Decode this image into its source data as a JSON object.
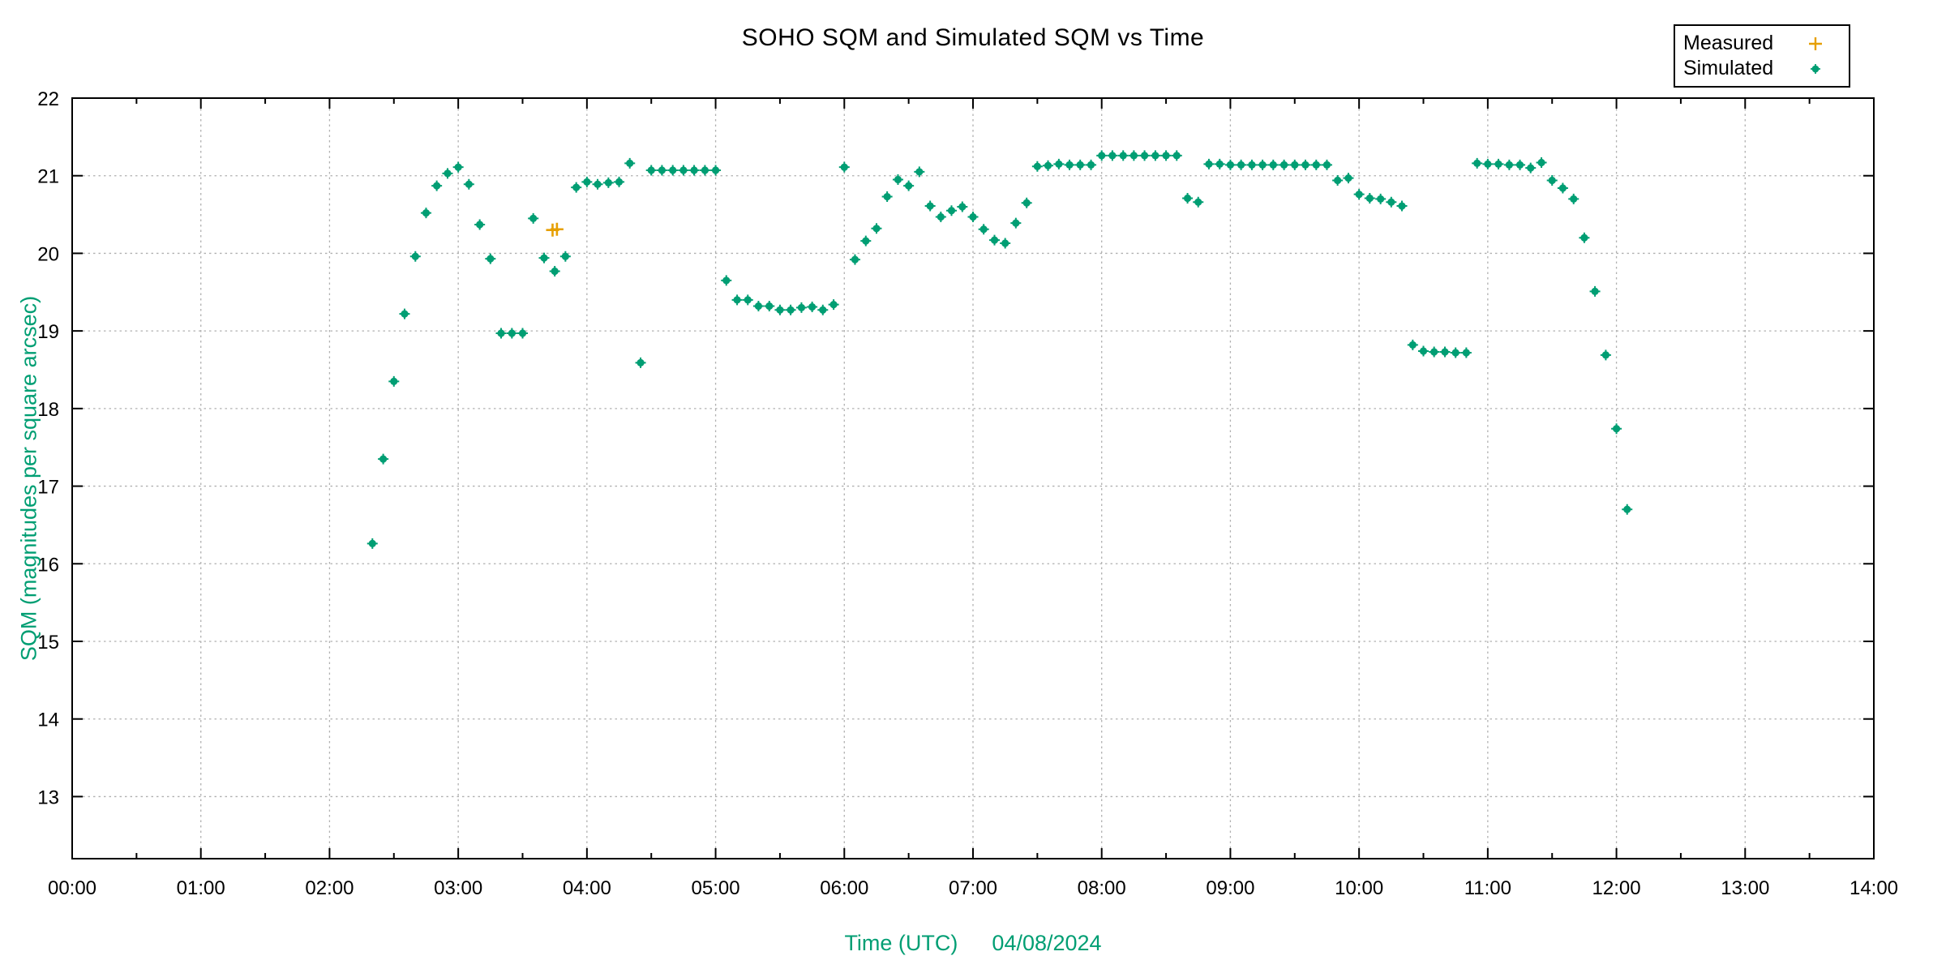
{
  "chart_data": {
    "type": "scatter",
    "title": "SOHO SQM and Simulated SQM vs Time",
    "xlabel": "Time (UTC)",
    "date_label": "04/08/2024",
    "ylabel": "SQM (magnitudes per square arcsec)",
    "xlim": [
      0,
      14
    ],
    "ylim": [
      12.2,
      22
    ],
    "x_tick_values": [
      0,
      1,
      2,
      3,
      4,
      5,
      6,
      7,
      8,
      9,
      10,
      11,
      12,
      13,
      14
    ],
    "x_tick_labels": [
      "00:00",
      "01:00",
      "02:00",
      "03:00",
      "04:00",
      "05:00",
      "06:00",
      "07:00",
      "08:00",
      "09:00",
      "10:00",
      "11:00",
      "12:00",
      "13:00",
      "14:00"
    ],
    "x_minor_tick_step": 0.5,
    "y_tick_values": [
      13,
      14,
      15,
      16,
      17,
      18,
      19,
      20,
      21,
      22
    ],
    "y_tick_labels": [
      "13",
      "14",
      "15",
      "16",
      "17",
      "18",
      "19",
      "20",
      "21",
      "22"
    ],
    "grid": true,
    "legend": {
      "position": "outside-top-right",
      "entries": [
        {
          "label": "Measured",
          "marker": "plus",
          "color": "#E69F00"
        },
        {
          "label": "Simulated",
          "marker": "dot",
          "color": "#009E73"
        }
      ]
    },
    "colors": {
      "measured": "#E69F00",
      "simulated": "#009E73",
      "axis_label_text": "#009E73",
      "grid": "#b0b0b0",
      "axis": "#000000",
      "text": "#000000",
      "background": "#ffffff"
    },
    "series": [
      {
        "name": "Measured",
        "marker": "plus",
        "color": "#E69F00",
        "x": [
          3.733,
          3.767
        ],
        "y": [
          20.3,
          20.31
        ]
      },
      {
        "name": "Simulated",
        "marker": "dot",
        "color": "#009E73",
        "x": [
          2.333,
          2.417,
          2.5,
          2.583,
          2.667,
          2.75,
          2.833,
          2.917,
          3.0,
          3.083,
          3.167,
          3.25,
          3.333,
          3.417,
          3.5,
          3.583,
          3.667,
          3.75,
          3.833,
          3.917,
          4.0,
          4.083,
          4.167,
          4.25,
          4.333,
          4.417,
          4.5,
          4.583,
          4.667,
          4.75,
          4.833,
          4.917,
          5.0,
          5.083,
          5.167,
          5.25,
          5.333,
          5.417,
          5.5,
          5.583,
          5.667,
          5.75,
          5.833,
          5.917,
          6.0,
          6.083,
          6.167,
          6.25,
          6.333,
          6.417,
          6.5,
          6.583,
          6.667,
          6.75,
          6.833,
          6.917,
          7.0,
          7.083,
          7.167,
          7.25,
          7.333,
          7.417,
          7.5,
          7.583,
          7.667,
          7.75,
          7.833,
          7.917,
          8.0,
          8.083,
          8.167,
          8.25,
          8.333,
          8.417,
          8.5,
          8.583,
          8.667,
          8.75,
          8.833,
          8.917,
          9.0,
          9.083,
          9.167,
          9.25,
          9.333,
          9.417,
          9.5,
          9.583,
          9.667,
          9.75,
          9.833,
          9.917,
          10.0,
          10.083,
          10.167,
          10.25,
          10.333,
          10.417,
          10.5,
          10.583,
          10.667,
          10.75,
          10.833,
          10.917,
          11.0,
          11.083,
          11.167,
          11.25,
          11.333,
          11.417,
          11.5,
          11.583,
          11.667,
          11.75,
          11.833,
          11.917,
          12.0,
          12.083
        ],
        "y": [
          16.26,
          17.35,
          18.35,
          19.22,
          19.96,
          20.52,
          20.87,
          21.03,
          21.11,
          20.89,
          20.37,
          19.93,
          18.97,
          18.97,
          18.97,
          20.45,
          19.94,
          19.77,
          19.96,
          20.85,
          20.92,
          20.89,
          20.91,
          20.92,
          21.16,
          18.59,
          21.07,
          21.07,
          21.07,
          21.07,
          21.07,
          21.07,
          21.07,
          19.65,
          19.4,
          19.4,
          19.32,
          19.32,
          19.27,
          19.27,
          19.3,
          19.31,
          19.27,
          19.34,
          21.11,
          19.92,
          20.16,
          20.32,
          20.73,
          20.95,
          20.87,
          21.05,
          20.61,
          20.47,
          20.55,
          20.6,
          20.47,
          20.31,
          20.17,
          20.13,
          20.39,
          20.65,
          21.12,
          21.13,
          21.15,
          21.14,
          21.14,
          21.14,
          21.26,
          21.26,
          21.26,
          21.26,
          21.26,
          21.26,
          21.26,
          21.26,
          20.71,
          20.66,
          21.15,
          21.15,
          21.14,
          21.14,
          21.14,
          21.14,
          21.14,
          21.14,
          21.14,
          21.14,
          21.14,
          21.14,
          20.94,
          20.97,
          20.76,
          20.71,
          20.7,
          20.66,
          20.61,
          18.82,
          18.74,
          18.73,
          18.73,
          18.72,
          18.72,
          21.16,
          21.15,
          21.15,
          21.14,
          21.14,
          21.1,
          21.17,
          20.94,
          20.84,
          20.7,
          20.2,
          19.51,
          18.69,
          17.74,
          16.7
        ]
      }
    ]
  }
}
